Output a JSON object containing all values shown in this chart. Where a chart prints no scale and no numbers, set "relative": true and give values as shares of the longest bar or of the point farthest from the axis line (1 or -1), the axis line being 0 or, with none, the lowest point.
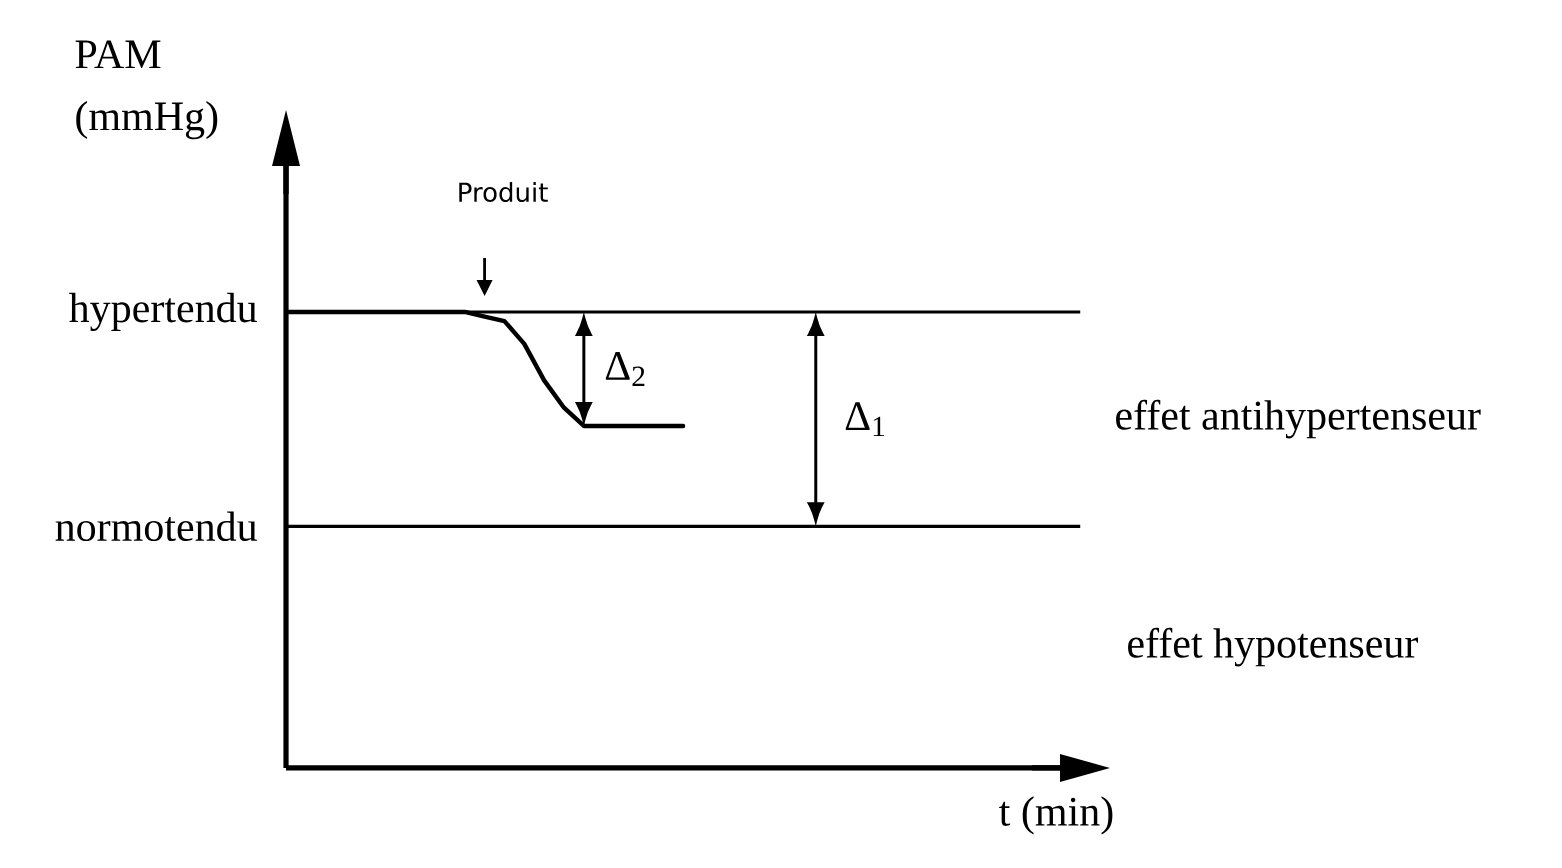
{
  "chart_data": {
    "type": "line",
    "ylabel": "PAM (mmHg)",
    "relative": true,
    "categories": [
      null,
      null,
      null,
      null,
      null,
      null,
      null,
      null,
      null,
      null,
      null,
      null,
      null,
      null,
      null,
      null,
      null,
      null,
      null,
      null,
      null
    ],
    "series": [
      {
        "color": "#000000",
        "values": [
          1,
          1,
          1,
          1,
          1,
          1,
          1,
          1,
          1,
          1,
          0.99,
          0.98,
          0.93,
          0.85,
          0.79,
          0.75,
          0.75,
          0.75,
          0.75,
          0.75,
          0.75
        ]
      }
    ],
    "ref_lines": [
      {
        "axis": "y",
        "value": 1,
        "label": "hypertendu"
      },
      {
        "axis": "y",
        "value": 0.53,
        "label": "normotendu"
      }
    ],
    "annotations": [
      "Produit",
      "Δ$_{2}$",
      "Δ$_{1}$",
      "effet antihypertenseur",
      "effet hypotenseur",
      "t (min)"
    ]
  }
}
